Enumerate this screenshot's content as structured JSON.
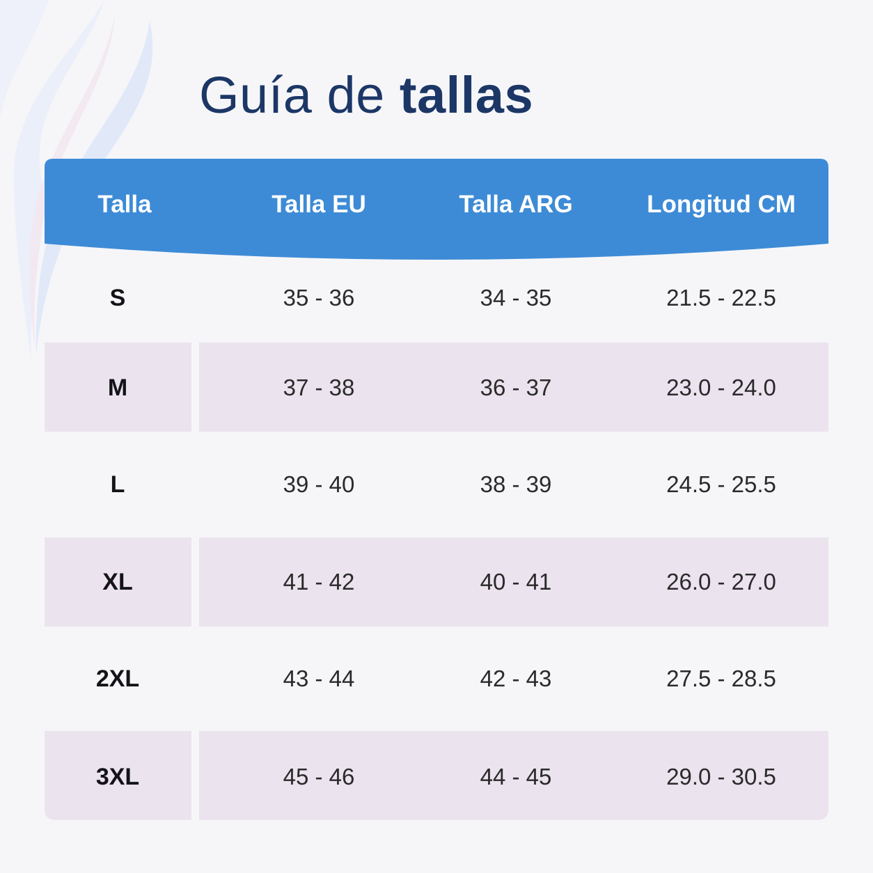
{
  "title": {
    "light": "Guía de",
    "bold": "tallas"
  },
  "colors": {
    "header": "#3d8bd6",
    "title": "#1c3766",
    "stripe": "#ebe3ee",
    "background": "#f6f6f9"
  },
  "chart_data": {
    "type": "table",
    "columns": [
      "Talla",
      "Talla EU",
      "Talla ARG",
      "Longitud CM"
    ],
    "rows": [
      [
        "S",
        "35 - 36",
        "34 - 35",
        "21.5 - 22.5"
      ],
      [
        "M",
        "37 - 38",
        "36 - 37",
        "23.0 - 24.0"
      ],
      [
        "L",
        "39 - 40",
        "38 - 39",
        "24.5 - 25.5"
      ],
      [
        "XL",
        "41 - 42",
        "40 - 41",
        "26.0 - 27.0"
      ],
      [
        "2XL",
        "43 - 44",
        "42 - 43",
        "27.5 - 28.5"
      ],
      [
        "3XL",
        "45 - 46",
        "44 - 45",
        "29.0 - 30.5"
      ]
    ]
  }
}
